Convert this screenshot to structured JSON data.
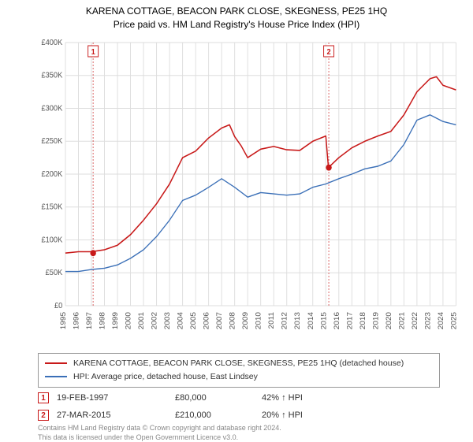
{
  "title": "KARENA COTTAGE, BEACON PARK CLOSE, SKEGNESS, PE25 1HQ",
  "subtitle": "Price paid vs. HM Land Registry's House Price Index (HPI)",
  "chart": {
    "type": "line",
    "background_color": "#ffffff",
    "grid_color": "#dddddd",
    "tick_fontsize": 10,
    "tick_color": "#555555",
    "x": {
      "min": 1995,
      "max": 2025,
      "ticks": [
        1995,
        1996,
        1997,
        1998,
        1999,
        2000,
        2001,
        2002,
        2003,
        2004,
        2005,
        2006,
        2007,
        2008,
        2009,
        2010,
        2011,
        2012,
        2013,
        2014,
        2015,
        2016,
        2017,
        2018,
        2019,
        2020,
        2021,
        2022,
        2023,
        2024,
        2025
      ]
    },
    "y": {
      "min": 0,
      "max": 400000,
      "ticks": [
        0,
        50000,
        100000,
        150000,
        200000,
        250000,
        300000,
        350000,
        400000
      ],
      "tick_labels": [
        "£0",
        "£50K",
        "£100K",
        "£150K",
        "£200K",
        "£250K",
        "£300K",
        "£350K",
        "£400K"
      ]
    },
    "series": [
      {
        "name": "price_paid",
        "color": "#c81919",
        "width": 1.6,
        "label": "KARENA COTTAGE, BEACON PARK CLOSE, SKEGNESS, PE25 1HQ (detached house)",
        "x": [
          1995,
          1996,
          1997,
          1998,
          1999,
          2000,
          2001,
          2002,
          2003,
          2004,
          2005,
          2006,
          2007,
          2007.6,
          2008,
          2008.5,
          2009,
          2010,
          2011,
          2012,
          2013,
          2014,
          2015,
          2015.2,
          2016,
          2017,
          2018,
          2019,
          2020,
          2021,
          2022,
          2023,
          2023.5,
          2024,
          2025
        ],
        "y": [
          80000,
          82000,
          82000,
          85000,
          92000,
          108000,
          130000,
          155000,
          185000,
          225000,
          235000,
          255000,
          270000,
          275000,
          257000,
          243000,
          225000,
          238000,
          242000,
          237000,
          236000,
          250000,
          258000,
          210000,
          225000,
          240000,
          250000,
          258000,
          265000,
          290000,
          325000,
          345000,
          348000,
          335000,
          328000
        ]
      },
      {
        "name": "hpi",
        "color": "#3a6fb7",
        "width": 1.4,
        "label": "HPI: Average price, detached house, East Lindsey",
        "x": [
          1995,
          1996,
          1997,
          1998,
          1999,
          2000,
          2001,
          2002,
          2003,
          2004,
          2005,
          2006,
          2007,
          2008,
          2009,
          2010,
          2011,
          2012,
          2013,
          2014,
          2015,
          2016,
          2017,
          2018,
          2019,
          2020,
          2021,
          2022,
          2023,
          2024,
          2025
        ],
        "y": [
          52000,
          52000,
          55000,
          57000,
          62000,
          72000,
          85000,
          105000,
          130000,
          160000,
          168000,
          180000,
          193000,
          180000,
          165000,
          172000,
          170000,
          168000,
          170000,
          180000,
          185000,
          193000,
          200000,
          208000,
          212000,
          220000,
          245000,
          282000,
          290000,
          280000,
          275000
        ]
      }
    ],
    "sale_markers": [
      {
        "n": "1",
        "x": 1997.13,
        "y": 80000
      },
      {
        "n": "2",
        "x": 2015.23,
        "y": 210000
      }
    ],
    "sale_vlines_color": "#c81919",
    "sale_vlines_dash": "2,2",
    "sale_point_fill": "#c81919"
  },
  "legend": {
    "items": [
      {
        "color": "#c81919",
        "label": "KARENA COTTAGE, BEACON PARK CLOSE, SKEGNESS, PE25 1HQ (detached house)"
      },
      {
        "color": "#3a6fb7",
        "label": "HPI: Average price, detached house, East Lindsey"
      }
    ]
  },
  "sales": [
    {
      "n": "1",
      "date": "19-FEB-1997",
      "price": "£80,000",
      "rel": "42% ↑ HPI"
    },
    {
      "n": "2",
      "date": "27-MAR-2015",
      "price": "£210,000",
      "rel": "20% ↑ HPI"
    }
  ],
  "footer_line1": "Contains HM Land Registry data © Crown copyright and database right 2024.",
  "footer_line2": "This data is licensed under the Open Government Licence v3.0."
}
